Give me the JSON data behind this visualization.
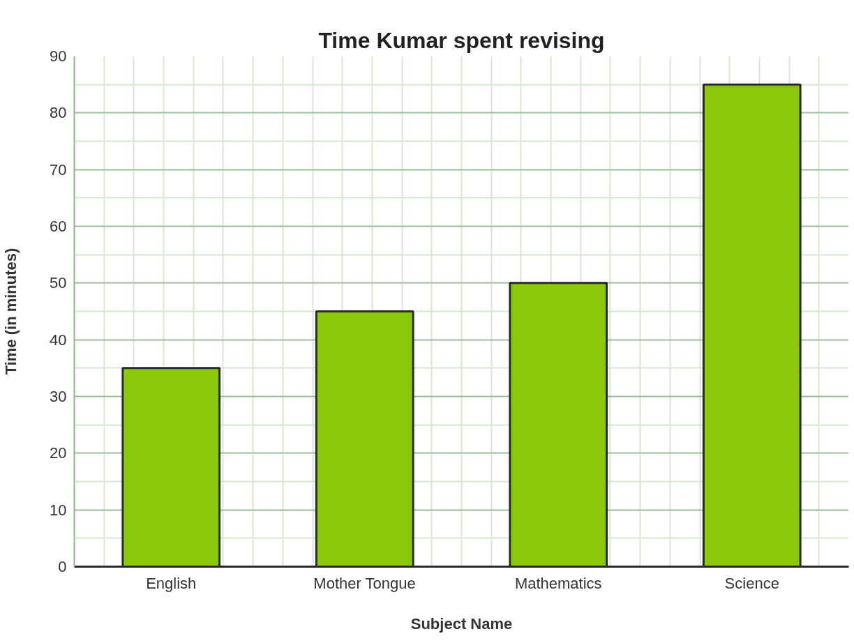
{
  "chart_data": {
    "type": "bar",
    "title": "Time Kumar spent revising",
    "xlabel": "Subject Name",
    "ylabel": "Time (in minutes)",
    "categories": [
      "English",
      "Mother Tongue",
      "Mathematics",
      "Science"
    ],
    "values": [
      35,
      45,
      50,
      85
    ],
    "color": "#8bc80a",
    "ylim": [
      0,
      90
    ],
    "yticks": [
      0,
      10,
      20,
      30,
      40,
      50,
      60,
      70,
      80,
      90
    ],
    "grid": true
  }
}
